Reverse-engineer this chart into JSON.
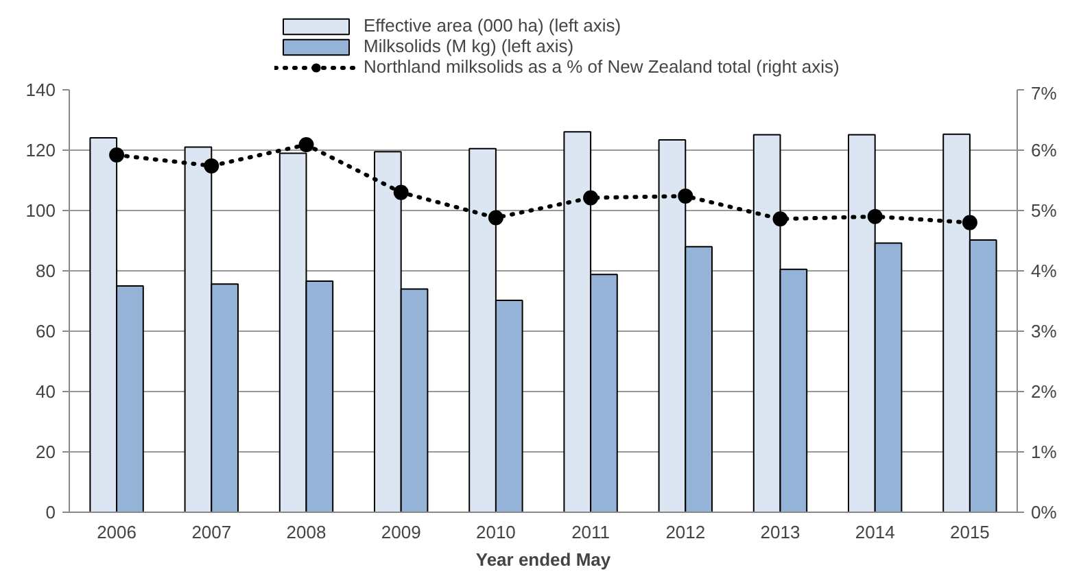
{
  "chart_data": {
    "type": "bar",
    "xlabel": "Year ended May",
    "categories": [
      "2006",
      "2007",
      "2008",
      "2009",
      "2010",
      "2011",
      "2012",
      "2013",
      "2014",
      "2015"
    ],
    "series": [
      {
        "name": "Effective area (000 ha) (left axis)",
        "color": "#dce6f2",
        "values": [
          124.1,
          121,
          119,
          119.5,
          120.5,
          126.1,
          123.4,
          125.1,
          125.1,
          125.3
        ]
      },
      {
        "name": "Milksolids (M kg) (left axis)",
        "color": "#95b3d7",
        "values": [
          75,
          75.6,
          76.6,
          74,
          70.2,
          78.8,
          88,
          80.5,
          89.2,
          90.2
        ]
      },
      {
        "name": "Northland milksolids as a % of New Zealand total (right axis)",
        "type": "line",
        "axis": "y2",
        "color": "#000000",
        "marker": "circle",
        "line_style": "dotted",
        "values": [
          5.92,
          5.74,
          6.09,
          5.3,
          4.88,
          5.21,
          5.24,
          4.86,
          4.9,
          4.8
        ]
      }
    ],
    "ylim": [
      0,
      140
    ],
    "yticks": [
      0,
      20,
      40,
      60,
      80,
      100,
      120,
      140
    ],
    "y2lim": [
      0,
      7
    ],
    "y2ticks": [
      {
        "value": 0,
        "label": "0%"
      },
      {
        "value": 1,
        "label": "1%"
      },
      {
        "value": 2,
        "label": "2%"
      },
      {
        "value": 3,
        "label": "3%"
      },
      {
        "value": 4,
        "label": "4%"
      },
      {
        "value": 5,
        "label": "5%"
      },
      {
        "value": 6,
        "label": "6%"
      },
      {
        "value": 7,
        "label": "7%"
      }
    ],
    "grid": "y",
    "legend": "top"
  }
}
